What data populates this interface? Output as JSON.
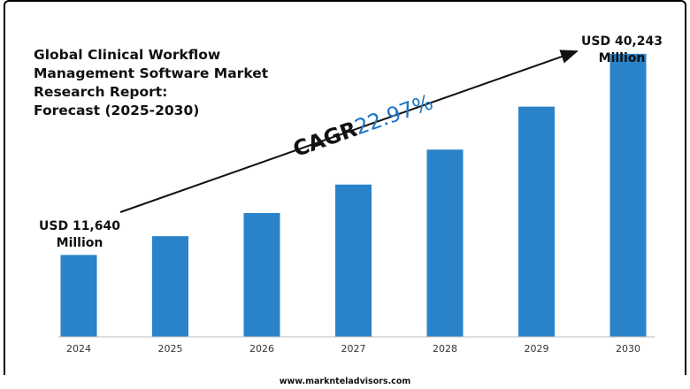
{
  "chart_data": {
    "type": "bar",
    "title_lines": [
      "Global Clinical Workflow",
      "Management Software Market",
      "Research Report:",
      "Forecast (2025-2030)"
    ],
    "categories": [
      "2024",
      "2025",
      "2026",
      "2027",
      "2028",
      "2029",
      "2030"
    ],
    "values": [
      11640,
      14310,
      17600,
      21650,
      26620,
      32730,
      40243
    ],
    "ylim": [
      0,
      45000
    ],
    "grid": false,
    "bar_color": "#2a83c9",
    "start_label": {
      "line1": "USD 11,640",
      "line2": "Million"
    },
    "end_label": {
      "line1": "USD 40,243",
      "line2": "Million"
    },
    "cagr_label": "CAGR",
    "cagr_value": "22.97%",
    "cagr_color": "#1f77c4"
  },
  "footer": "www.marknteladvisors.com"
}
